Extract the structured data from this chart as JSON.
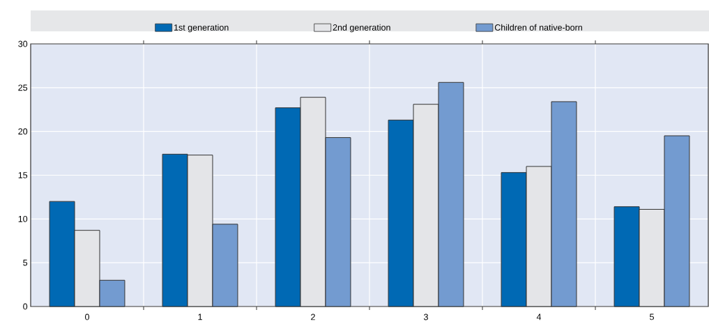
{
  "chart_data": {
    "type": "bar",
    "categories": [
      "0",
      "1",
      "2",
      "3",
      "4",
      "5"
    ],
    "series": [
      {
        "name": "1st generation",
        "color": "#0069b4",
        "values": [
          12.0,
          17.4,
          22.7,
          21.3,
          15.3,
          11.4
        ]
      },
      {
        "name": "2nd generation",
        "color": "#e4e5e8",
        "values": [
          8.7,
          17.3,
          23.9,
          23.1,
          16.0,
          11.1
        ]
      },
      {
        "name": "Children of native-born",
        "color": "#739bd0",
        "values": [
          3.0,
          9.4,
          19.3,
          25.6,
          23.4,
          19.5
        ]
      }
    ],
    "ylim": [
      0,
      30
    ],
    "yticks": [
      0,
      5,
      10,
      15,
      20,
      25,
      30
    ],
    "grid": true,
    "legend": "top"
  }
}
